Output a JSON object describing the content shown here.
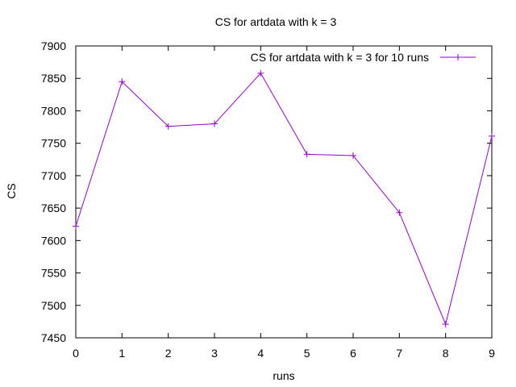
{
  "chart_data": {
    "type": "line",
    "title": "CS for artdata with k = 3",
    "xlabel": "runs",
    "ylabel": "CS",
    "xlim": [
      0,
      9
    ],
    "ylim": [
      7450,
      7900
    ],
    "xticks": [
      "0",
      "1",
      "2",
      "3",
      "4",
      "5",
      "6",
      "7",
      "8",
      "9"
    ],
    "yticks": [
      "7450",
      "7500",
      "7550",
      "7600",
      "7650",
      "7700",
      "7750",
      "7800",
      "7850",
      "7900"
    ],
    "grid": false,
    "legend_position": "top-right",
    "series": [
      {
        "name": "CS for artdata with k = 3 for 10 runs",
        "color": "#9400d3",
        "marker": "plus",
        "x": [
          0,
          1,
          2,
          3,
          4,
          5,
          6,
          7,
          8,
          9
        ],
        "y": [
          7622,
          7845,
          7776,
          7780,
          7858,
          7733,
          7731,
          7643,
          7471,
          7761
        ]
      }
    ]
  }
}
